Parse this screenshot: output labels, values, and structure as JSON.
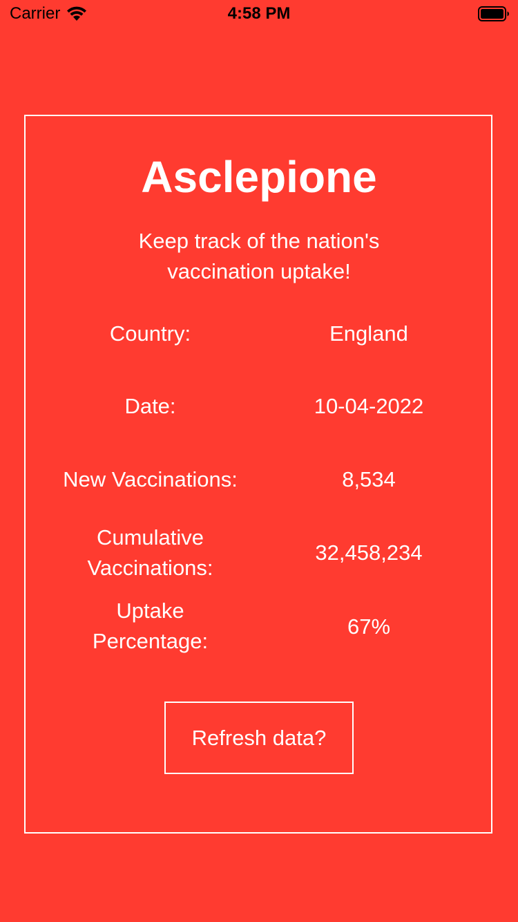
{
  "status_bar": {
    "carrier": "Carrier",
    "time": "4:58 PM",
    "icons": [
      "wifi-icon",
      "battery-icon"
    ]
  },
  "app": {
    "title": "Asclepione",
    "tagline_line1": "Keep track of the nation's",
    "tagline_line2": "vaccination uptake!"
  },
  "stats": {
    "country_label": "Country:",
    "country_value": "England",
    "date_label": "Date:",
    "date_value": "10-04-2022",
    "new_vacc_label": "New Vaccinations:",
    "new_vacc_value": "8,534",
    "cumulative_label_line1": "Cumulative",
    "cumulative_label_line2": "Vaccinations:",
    "cumulative_value": "32,458,234",
    "uptake_label_line1": "Uptake",
    "uptake_label_line2": "Percentage:",
    "uptake_value": "67%"
  },
  "actions": {
    "refresh_label": "Refresh data?"
  },
  "colors": {
    "background": "#FF3B30",
    "foreground": "#FFFFFF"
  }
}
